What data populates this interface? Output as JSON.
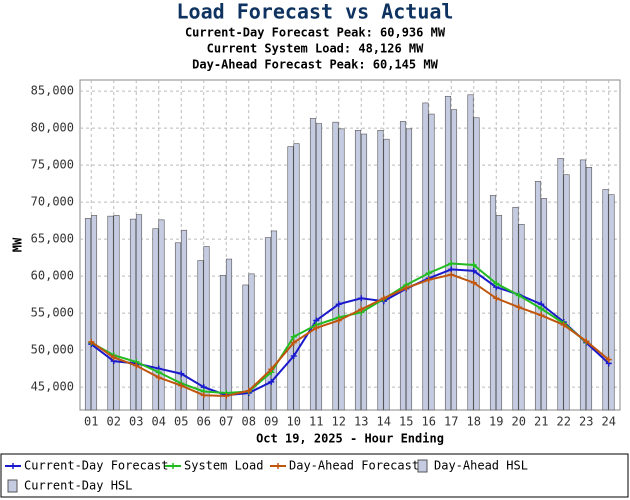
{
  "chart_data": {
    "type": "bar",
    "title": "Load Forecast vs Actual",
    "subtitles": [
      {
        "text": "Current-Day Forecast Peak:  60,936 MW",
        "color": "#1a1acc"
      },
      {
        "text": "Current System Load:  48,126 MW",
        "color": "#22a822"
      },
      {
        "text": "Day-Ahead Forecast Peak:  60,145 MW",
        "color": "#c0560e"
      }
    ],
    "x_label": "Oct 19, 2025 - Hour Ending",
    "y_label": "MW",
    "categories": [
      "01",
      "02",
      "03",
      "04",
      "05",
      "06",
      "07",
      "08",
      "09",
      "10",
      "11",
      "12",
      "13",
      "14",
      "15",
      "16",
      "17",
      "18",
      "19",
      "20",
      "21",
      "22",
      "23",
      "24"
    ],
    "ylim": [
      41900,
      86500
    ],
    "yticks": [
      {
        "value": 45000,
        "label": "45,000"
      },
      {
        "value": 50000,
        "label": "50,000"
      },
      {
        "value": 55000,
        "label": "55,000"
      },
      {
        "value": 60000,
        "label": "60,000"
      },
      {
        "value": 65000,
        "label": "65,000"
      },
      {
        "value": 70000,
        "label": "70,000"
      },
      {
        "value": 75000,
        "label": "75,000"
      },
      {
        "value": 80000,
        "label": "80,000"
      },
      {
        "value": 85000,
        "label": "85,000"
      }
    ],
    "grid": true,
    "series": [
      {
        "name": "Current-Day Forecast",
        "type": "line",
        "color": "#1a1acc",
        "values": [
          50800,
          48500,
          48200,
          47500,
          46800,
          45000,
          43900,
          44200,
          45700,
          49200,
          54000,
          56200,
          57000,
          56600,
          58300,
          59700,
          60900,
          60700,
          58500,
          57500,
          56200,
          53800,
          51000,
          48200
        ]
      },
      {
        "name": "System Load",
        "type": "line",
        "color": "#22bb22",
        "values": [
          51000,
          49300,
          48400,
          47000,
          45500,
          44400,
          44200,
          44400,
          47000,
          51800,
          53400,
          54400,
          55100,
          56900,
          58800,
          60400,
          61700,
          61500,
          59000,
          57400,
          55600,
          53600,
          51100,
          null
        ]
      },
      {
        "name": "Day-Ahead Forecast",
        "type": "line",
        "color": "#c0560e",
        "values": [
          51100,
          49000,
          47900,
          46300,
          45200,
          43900,
          43800,
          44500,
          47400,
          51000,
          53000,
          54000,
          55500,
          57000,
          58400,
          59500,
          60200,
          59100,
          57000,
          55800,
          54700,
          53400,
          51200,
          48700
        ]
      },
      {
        "name": "Day-Ahead HSL",
        "type": "bar",
        "color": "#c5cbe0",
        "values": [
          67800,
          68100,
          67700,
          66400,
          64500,
          62100,
          60100,
          58800,
          65200,
          77500,
          81300,
          80800,
          79700,
          79700,
          80900,
          83400,
          84300,
          84500,
          70900,
          69300,
          72800,
          75900,
          75700,
          71700
        ]
      },
      {
        "name": "Current-Day HSL",
        "type": "bar",
        "color": "#c5cbe0",
        "values": [
          68200,
          68200,
          68300,
          67600,
          66200,
          64000,
          62300,
          60300,
          66100,
          77900,
          80600,
          79900,
          79200,
          78500,
          79900,
          81900,
          82500,
          81400,
          68200,
          67000,
          70500,
          73700,
          74700,
          71000
        ]
      }
    ]
  }
}
